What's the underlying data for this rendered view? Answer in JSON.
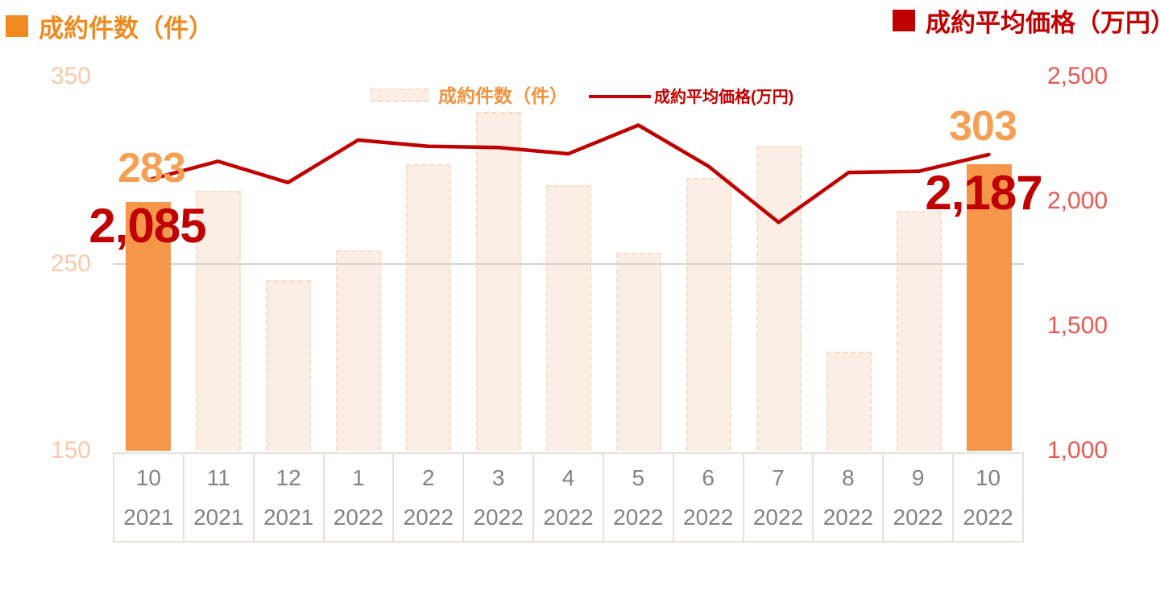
{
  "header": {
    "left_title": "成約件数（件）",
    "right_title": "成約平均価格（万円）"
  },
  "legend": {
    "bar_label": "成約件数（件）",
    "line_label": "成約平均価格(万円)"
  },
  "annotations": {
    "first_bar_label": "283",
    "first_line_label": "2,085",
    "last_bar_label": "303",
    "last_line_label": "2,187"
  },
  "colors": {
    "title_orange": "#EF8A1E",
    "bar_highlight_orange": "#F5964A",
    "bar_pale": "#FBEFE5",
    "orange_data_label": "#F6A055",
    "left_axis_tick": "#F9C9AC",
    "line_dark_red": "#C00000",
    "right_axis_tick": "#E85850",
    "x_axis_text_gray": "#838383",
    "gridline": "#D9D3CE"
  },
  "chart_data": {
    "type": "bar",
    "subtype": "bar-line-combo",
    "categories": [
      "10 2021",
      "11 2021",
      "12 2021",
      "1 2022",
      "2 2022",
      "3 2022",
      "4 2022",
      "5 2022",
      "6 2022",
      "7 2022",
      "8 2022",
      "9 2022",
      "10 2022"
    ],
    "months": [
      "10",
      "11",
      "12",
      "1",
      "2",
      "3",
      "4",
      "5",
      "6",
      "7",
      "8",
      "9",
      "10"
    ],
    "years": [
      "2021",
      "2021",
      "2021",
      "2022",
      "2022",
      "2022",
      "2022",
      "2022",
      "2022",
      "2022",
      "2022",
      "2022",
      "2022"
    ],
    "series": [
      {
        "name": "成約件数（件）",
        "render": "bar",
        "axis": "left",
        "values": [
          283,
          289,
          241,
          257,
          303,
          331,
          292,
          256,
          296,
          313,
          203,
          278,
          303
        ],
        "highlighted_indices": [
          0,
          12
        ]
      },
      {
        "name": "成約平均価格(万円)",
        "render": "line",
        "axis": "right",
        "values": [
          2085,
          2160,
          2075,
          2245,
          2220,
          2215,
          2190,
          2305,
          2140,
          1915,
          2115,
          2120,
          2187
        ]
      }
    ],
    "left_axis": {
      "min": 150,
      "max": 350,
      "ticks": [
        {
          "value": 350,
          "label": "350"
        },
        {
          "value": 250,
          "label": "250"
        },
        {
          "value": 150,
          "label": "150"
        }
      ]
    },
    "right_axis": {
      "min": 1000,
      "max": 2500,
      "ticks": [
        {
          "value": 2500,
          "label": "2,500"
        },
        {
          "value": 2000,
          "label": "2,000"
        },
        {
          "value": 1500,
          "label": "1,500"
        },
        {
          "value": 1000,
          "label": "1,000"
        }
      ]
    },
    "gridlines_left_values": [
      250
    ],
    "legend_position": "top-center",
    "data_labels": [
      {
        "series": "bar",
        "index": 0,
        "text": "283"
      },
      {
        "series": "line",
        "index": 0,
        "text": "2,085"
      },
      {
        "series": "bar",
        "index": 12,
        "text": "303"
      },
      {
        "series": "line",
        "index": 12,
        "text": "2,187"
      }
    ]
  }
}
